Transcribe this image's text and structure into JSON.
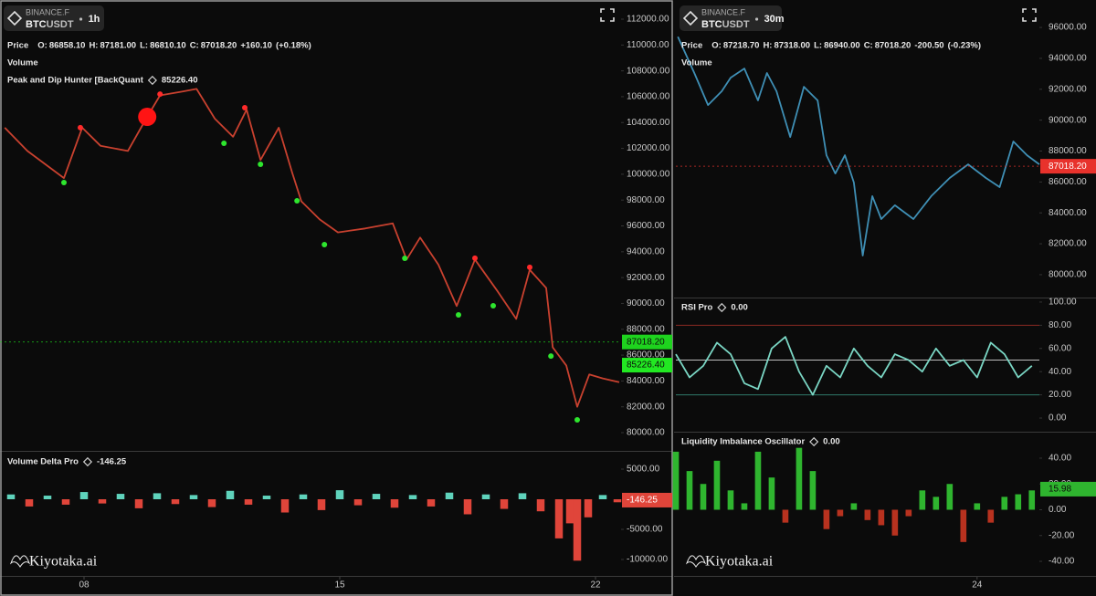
{
  "chart_data": [
    {
      "type": "line",
      "exchange": "BINANCE.F",
      "base": "BTC",
      "quote": "USDT",
      "interval": "1h",
      "ohlc": [
        {
          "label": "O:",
          "value": "86858.10"
        },
        {
          "label": "H:",
          "value": "87181.00"
        },
        {
          "label": "L:",
          "value": "86810.10"
        },
        {
          "label": "C:",
          "value": "87018.20"
        }
      ],
      "change": "+160.10",
      "change_percent": "(+0.18%)",
      "ohlc_color": "#26c6a6",
      "volume_label": "Volume",
      "indicator": {
        "name": "Peak and Dip Hunter [BackQuant",
        "value": "85226.40",
        "color": "#3ddc3d"
      },
      "series": [
        {
          "name": "Price",
          "color": "#c9412f",
          "x": [
            5.83,
            6.45,
            7.45,
            7.95,
            8.45,
            9.2,
            9.7,
            10.08,
            10.7,
            11.08,
            11.58,
            12.08,
            12.45,
            12.83,
            13.33,
            13.7,
            13.95,
            14.45,
            14.95,
            15.7,
            16.45,
            16.83,
            17.2,
            17.7,
            18.2,
            18.7,
            19.33,
            19.83,
            20.2,
            20.65,
            20.83,
            21.2,
            21.5,
            21.83,
            22.2,
            22.65
          ],
          "values": [
            103600,
            101800,
            99700,
            103600,
            102200,
            101800,
            104300,
            106100,
            106400,
            106600,
            104300,
            102900,
            105000,
            101100,
            103600,
            100100,
            97900,
            96500,
            95500,
            95800,
            96200,
            93400,
            95100,
            93000,
            89800,
            93400,
            90900,
            88800,
            92600,
            91200,
            86600,
            85200,
            82000,
            84500,
            84200,
            83900
          ]
        }
      ],
      "markers": {
        "peaks": {
          "color": "#ff2a2a",
          "x": [
            7.9,
            10.08,
            12.4,
            18.7,
            20.2
          ],
          "y": [
            103600,
            106200,
            105150,
            93500,
            92800
          ]
        },
        "dips": {
          "color": "#2ee62e",
          "x": [
            7.45,
            11.83,
            12.83,
            13.83,
            14.58,
            16.78,
            18.25,
            19.2,
            20.78,
            21.5
          ],
          "y": [
            99360,
            102390,
            100770,
            97940,
            94550,
            93490,
            89110,
            89820,
            85930,
            80990
          ]
        },
        "highlight": {
          "color": "#ff1414",
          "x": 9.73,
          "y": 104440
        }
      },
      "xlim": [
        5.7,
        22.7
      ],
      "ylim": [
        78660,
        113130
      ],
      "yticks": [
        {
          "value": 80000,
          "label": "80000.00"
        },
        {
          "value": 82000,
          "label": "82000.00"
        },
        {
          "value": 84000,
          "label": "84000.00"
        },
        {
          "value": 86000,
          "label": "86000.00"
        },
        {
          "value": 88000,
          "label": "88000.00"
        },
        {
          "value": 90000,
          "label": "90000.00"
        },
        {
          "value": 92000,
          "label": "92000.00"
        },
        {
          "value": 94000,
          "label": "94000.00"
        },
        {
          "value": 96000,
          "label": "96000.00"
        },
        {
          "value": 98000,
          "label": "98000.00"
        },
        {
          "value": 100000,
          "label": "100000.00"
        },
        {
          "value": 102000,
          "label": "102000.00"
        },
        {
          "value": 104000,
          "label": "104000.00"
        },
        {
          "value": 106000,
          "label": "106000.00"
        },
        {
          "value": 108000,
          "label": "108000.00"
        },
        {
          "value": 110000,
          "label": "110000.00"
        },
        {
          "value": 112000,
          "label": "112000.00"
        }
      ],
      "price_labels": [
        {
          "value": 87018.2,
          "label": "87018.20",
          "color": "#1ed31e"
        },
        {
          "value": 85226.4,
          "label": "85226.40",
          "color": "#22e822"
        }
      ]
    },
    {
      "type": "bar",
      "indicator": {
        "name": "Volume Delta Pro",
        "value": "-146.25",
        "color": "#5fd3bc"
      },
      "positive_color": "#5fd3bc",
      "negative_color": "#e0453a",
      "x": [
        6,
        6.5,
        7,
        7.5,
        8,
        8.5,
        9,
        9.5,
        10,
        10.5,
        11,
        11.5,
        12,
        12.5,
        13,
        13.5,
        14,
        14.5,
        15,
        15.5,
        16,
        16.5,
        17,
        17.5,
        18,
        18.5,
        19,
        19.5,
        20,
        20.5,
        21,
        21.3,
        21.5,
        21.8,
        22.2,
        22.6
      ],
      "values": [
        800,
        -1200,
        600,
        -900,
        1200,
        -700,
        900,
        -1500,
        1000,
        -800,
        700,
        -1300,
        1400,
        -900,
        600,
        -2200,
        800,
        -1800,
        1500,
        -1000,
        900,
        -1400,
        700,
        -1200,
        1100,
        -2500,
        800,
        -1600,
        1000,
        -2000,
        -6500,
        -4000,
        -10200,
        -3000,
        700,
        -500
      ],
      "xlim": [
        5.7,
        22.7
      ],
      "ylim": [
        -12580,
        7730
      ],
      "yticks": [
        {
          "value": 5000,
          "label": "5000.00"
        },
        {
          "value": -5000,
          "label": "-5000.00"
        },
        {
          "value": -10000,
          "label": "-10000.00"
        }
      ],
      "xticks": [
        {
          "value": 8,
          "label": "08"
        },
        15,
        22
      ],
      "price_labels": [
        {
          "value": -146.25,
          "label": "-146.25",
          "color": "#e0453a"
        }
      ],
      "watermark": "Kiyotaka.ai"
    },
    {
      "type": "line",
      "exchange": "BINANCE.F",
      "base": "BTC",
      "quote": "USDT",
      "interval": "30m",
      "ohlc": [
        {
          "label": "O:",
          "value": "87218.70"
        },
        {
          "label": "H:",
          "value": "87318.00"
        },
        {
          "label": "L:",
          "value": "86940.00"
        },
        {
          "label": "C:",
          "value": "87018.20"
        }
      ],
      "change": "-200.50",
      "change_percent": "(-0.23%)",
      "ohlc_color": "#f0443a",
      "volume_label": "Volume",
      "series": [
        {
          "name": "Price",
          "color": "#3f8fb5",
          "x": [
            19.63,
            19.87,
            20.07,
            20.27,
            20.4,
            20.6,
            20.8,
            20.93,
            21.07,
            21.27,
            21.47,
            21.67,
            21.8,
            21.93,
            22.07,
            22.2,
            22.33,
            22.47,
            22.6,
            22.8,
            23.07,
            23.33,
            23.6,
            23.87,
            24.13,
            24.33,
            24.53,
            24.73,
            24.91
          ],
          "values": [
            95400,
            93050,
            90980,
            91870,
            92750,
            93340,
            91280,
            93050,
            91870,
            88910,
            92160,
            91280,
            87730,
            86550,
            87730,
            85960,
            81240,
            85080,
            83600,
            84490,
            83600,
            85080,
            86260,
            87140,
            86260,
            85670,
            88620,
            87730,
            87140
          ]
        }
      ],
      "xlim": [
        19.6,
        24.91
      ],
      "ylim": [
        78580,
        97480
      ],
      "yticks": [
        {
          "value": 80000,
          "label": "80000.00"
        },
        {
          "value": 82000,
          "label": "82000.00"
        },
        {
          "value": 84000,
          "label": "84000.00"
        },
        {
          "value": 86000,
          "label": "86000.00"
        },
        {
          "value": 88000,
          "label": "88000.00"
        },
        {
          "value": 90000,
          "label": "90000.00"
        },
        {
          "value": 92000,
          "label": "92000.00"
        },
        {
          "value": 94000,
          "label": "94000.00"
        },
        {
          "value": 96000,
          "label": "96000.00"
        }
      ],
      "price_labels": [
        {
          "value": 87018.2,
          "label": "87018.20",
          "color": "#e8322c"
        }
      ]
    },
    {
      "type": "line",
      "indicator": {
        "name": "RSI Pro",
        "value": "0.00",
        "color": "#e8e8e8"
      },
      "series": [
        {
          "name": "RSI Pro",
          "color": "#7ad6c4",
          "x": [
            19.6,
            19.8,
            20.0,
            20.2,
            20.4,
            20.6,
            20.8,
            21.0,
            21.2,
            21.4,
            21.6,
            21.8,
            22.0,
            22.2,
            22.4,
            22.6,
            22.8,
            23.0,
            23.2,
            23.4,
            23.6,
            23.8,
            24.0,
            24.2,
            24.4,
            24.6,
            24.8
          ],
          "values": [
            55,
            35,
            45,
            65,
            55,
            30,
            25,
            60,
            70,
            40,
            20,
            45,
            35,
            60,
            45,
            35,
            55,
            50,
            40,
            60,
            45,
            50,
            35,
            65,
            55,
            35,
            45
          ]
        }
      ],
      "levels": [
        {
          "value": 80,
          "color": "#8a2a22"
        },
        {
          "value": 50,
          "color": "#bcbcbc"
        },
        {
          "value": 20,
          "color": "#2f7a6a"
        }
      ],
      "xlim": [
        19.6,
        24.91
      ],
      "ylim": [
        -11,
        103.1
      ],
      "yticks": [
        {
          "value": 100,
          "label": "100.00"
        },
        {
          "value": 80,
          "label": "80.00"
        },
        {
          "value": 60,
          "label": "60.00"
        },
        {
          "value": 40,
          "label": "40.00"
        },
        {
          "value": 20,
          "label": "20.00"
        },
        {
          "value": 0,
          "label": "0.00"
        }
      ]
    },
    {
      "type": "bar",
      "indicator": {
        "name": "Liquidity Imbalance Oscillator",
        "value": "0.00",
        "color": "#e8e8e8"
      },
      "positive_color": "#2fb52f",
      "negative_color": "#b8321f",
      "x": [
        19.6,
        19.8,
        20.0,
        20.2,
        20.4,
        20.6,
        20.8,
        21.0,
        21.2,
        21.4,
        21.6,
        21.8,
        22.0,
        22.2,
        22.4,
        22.6,
        22.8,
        23.0,
        23.2,
        23.4,
        23.6,
        23.8,
        24.0,
        24.2,
        24.4,
        24.6,
        24.8
      ],
      "values": [
        45,
        30,
        20,
        38,
        15,
        5,
        45,
        25,
        -10,
        48,
        30,
        -15,
        -5,
        5,
        -8,
        -12,
        -20,
        -5,
        15,
        10,
        20,
        -25,
        5,
        -10,
        10,
        12,
        15
      ],
      "xlim": [
        19.6,
        24.91
      ],
      "ylim": [
        -50.6,
        59.8
      ],
      "yticks": [
        {
          "value": 40,
          "label": "40.00"
        },
        {
          "value": 20,
          "label": "20.00"
        },
        {
          "value": 0,
          "label": "0.00"
        },
        {
          "value": -20,
          "label": "-20.00"
        },
        {
          "value": -40,
          "label": "-40.00"
        }
      ],
      "xticks": [
        24
      ],
      "price_labels": [
        {
          "value": 15.98,
          "label": "15.98",
          "color": "#2fb52f"
        }
      ],
      "watermark": "Kiyotaka.ai"
    }
  ]
}
